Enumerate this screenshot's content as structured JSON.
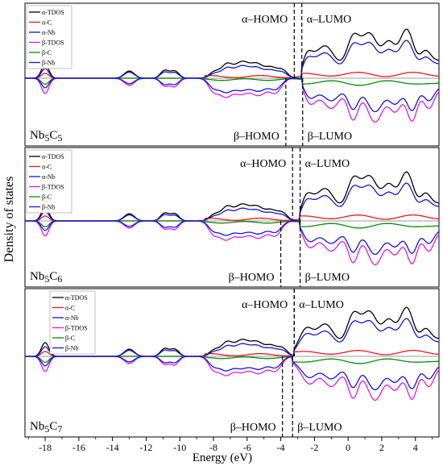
{
  "figure": {
    "y_axis_label": "Density of states",
    "x_axis_label": "Energy (eV)"
  },
  "chart_data": {
    "type": "line",
    "xlim": [
      -19.2,
      5.4
    ],
    "x_ticks": [
      -18,
      -16,
      -14,
      -12,
      -10,
      -8,
      -6,
      -4,
      -2,
      0,
      2,
      4
    ],
    "x_tick_labels": [
      "-18",
      "-16",
      "-14",
      "-12",
      "-10",
      "-8",
      "-6",
      "-4",
      "-2",
      "0",
      "2",
      "4"
    ],
    "xlabel": "Energy (eV)",
    "ylabel": "Density of states",
    "grid": false,
    "legend_position": "top-left",
    "series_colors": {
      "α-TDOS": "#000000",
      "α-C": "#e8191b",
      "α-Nb": "#1414d6",
      "β-TDOS": "#e01be0",
      "β-C": "#0a8a0a",
      "β-Nb": "#1414d6"
    },
    "panels": [
      {
        "compound": "Nb5C5",
        "compound_parts": {
          "a": "Nb",
          "b": "5",
          "c": "C",
          "d": "5"
        },
        "legend": [
          "α-TDOS",
          "α-C",
          "α-Nb",
          "β-TDOS",
          "β-C",
          "β-Nb"
        ],
        "alpha_homo": -3.2,
        "alpha_lumo": -2.75,
        "beta_homo": -3.7,
        "beta_lumo": -2.7,
        "annotations": {
          "alpha_homo": "α–HOMO",
          "alpha_lumo": "α–LUMO",
          "beta_homo": "β–HOMO",
          "beta_lumo": "β–LUMO"
        }
      },
      {
        "compound": "Nb5C6",
        "compound_parts": {
          "a": "Nb",
          "b": "5",
          "c": "C",
          "d": "6"
        },
        "legend": [
          "α-TDOS",
          "α-C",
          "α-Nb",
          "β-TDOS",
          "β-C",
          "β-Nb"
        ],
        "alpha_homo": -3.3,
        "alpha_lumo": -2.85,
        "beta_homo": -4.0,
        "beta_lumo": -2.85,
        "annotations": {
          "alpha_homo": "α–HOMO",
          "alpha_lumo": "α–LUMO",
          "beta_homo": "β–HOMO",
          "beta_lumo": "β–LUMO"
        }
      },
      {
        "compound": "Nb5C7",
        "compound_parts": {
          "a": "Nb",
          "b": "5",
          "c": "C",
          "d": "7"
        },
        "legend": [
          "α-TDOS",
          "α-C",
          "α-Nb",
          "β-TDOS",
          "β-C",
          "β-Nb"
        ],
        "alpha_homo": -3.2,
        "alpha_lumo": -3.2,
        "beta_homo": -3.9,
        "beta_lumo": -3.3,
        "annotations": {
          "alpha_homo": "α–HOMO",
          "alpha_lumo": "α–LUMO",
          "beta_homo": "β–HOMO",
          "beta_lumo": "β–LUMO"
        }
      }
    ]
  }
}
